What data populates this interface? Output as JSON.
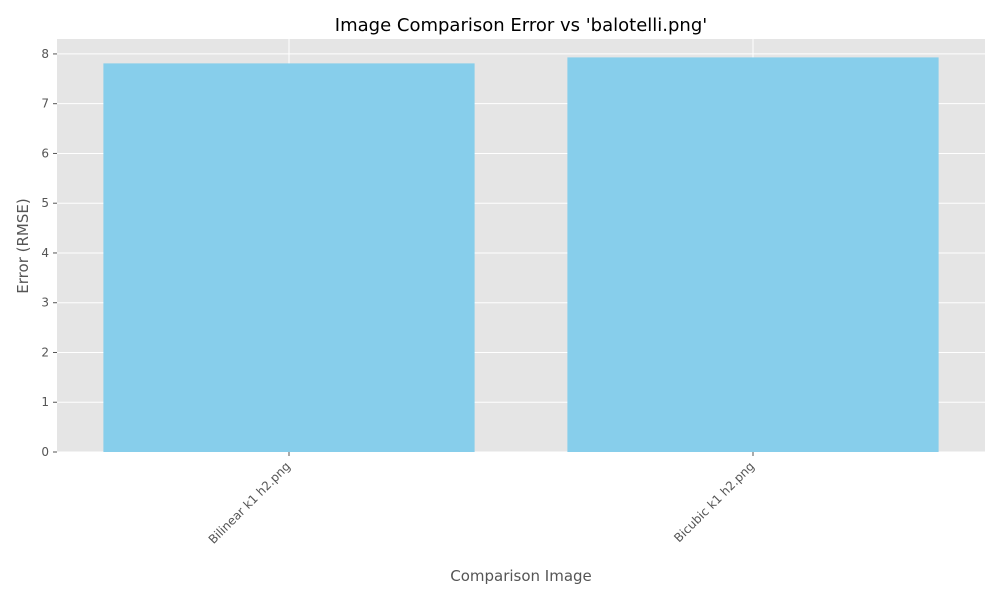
{
  "chart_data": {
    "type": "bar",
    "title": "Image Comparison Error vs 'balotelli.png'",
    "xlabel": "Comparison Image",
    "ylabel": "Error (RMSE)",
    "categories": [
      "Bilinear k1 h2.png",
      "Bicubic k1 h2.png"
    ],
    "values": [
      7.81,
      7.93
    ],
    "ylim": [
      0,
      8.3
    ],
    "yticks": [
      "0",
      "1",
      "2",
      "3",
      "4",
      "5",
      "6",
      "7",
      "8"
    ],
    "grid": true,
    "legend": "none",
    "colors": {
      "bar": "#87ceeb",
      "plot_background": "#e5e5e5",
      "grid": "#ffffff",
      "tick_text": "#555555"
    }
  }
}
